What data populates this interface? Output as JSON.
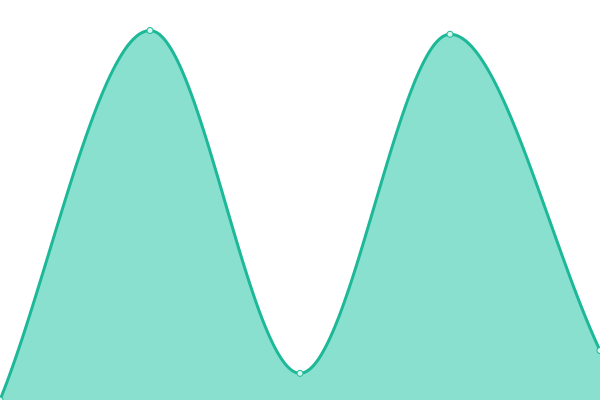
{
  "chart_data": {
    "type": "area",
    "x": [
      0,
      1,
      2,
      3,
      4
    ],
    "series": [
      {
        "values": [
          0.0,
          0.97,
          0.07,
          0.96,
          0.13
        ]
      }
    ],
    "ylim": [
      0,
      1.05
    ],
    "grid": false,
    "legend": "none",
    "xlabel": "",
    "ylabel": "",
    "colors": {
      "line": "#1db898",
      "fill": "#89e0cf",
      "marker_fill": "#d5f6ef"
    }
  }
}
